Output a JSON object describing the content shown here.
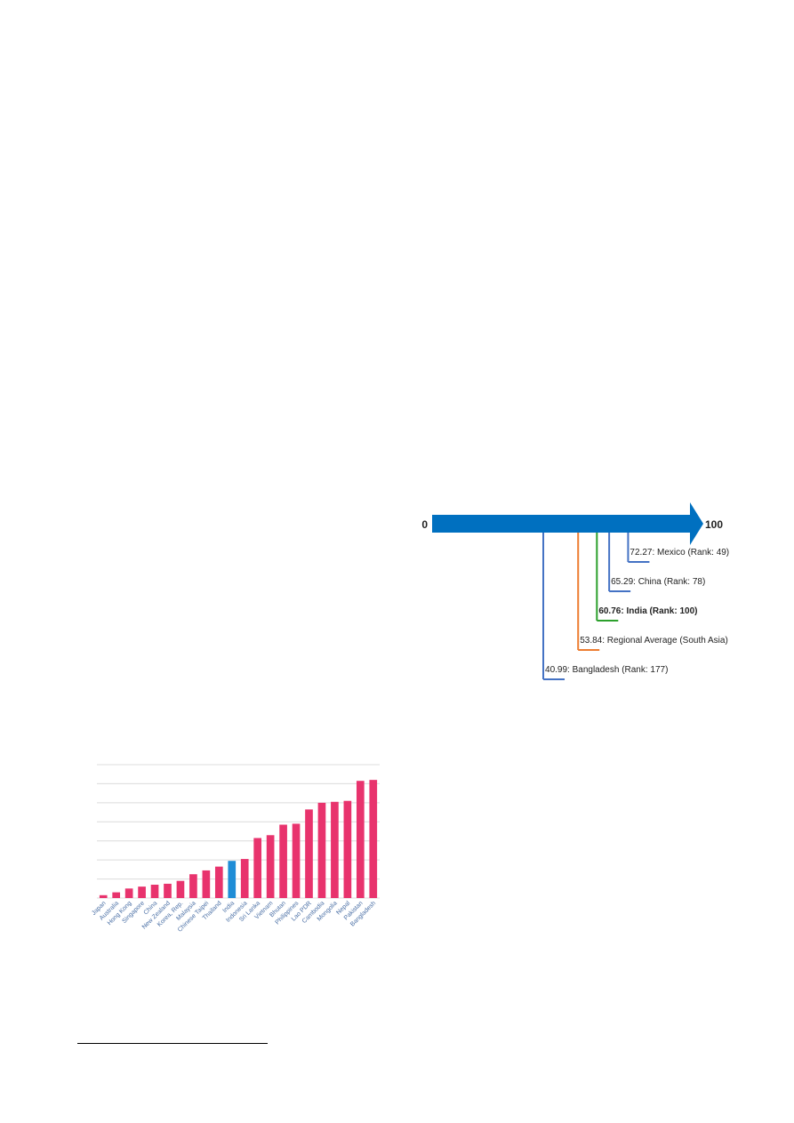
{
  "score_scale": {
    "min_label": "0",
    "max_label": "100",
    "arrow_color": "#0070c0",
    "markers": [
      {
        "value": 72.27,
        "label": "72.27: Mexico (Rank: 49)",
        "color": "#4472c4",
        "bold": false
      },
      {
        "value": 65.29,
        "label": "65.29: China (Rank: 78)",
        "color": "#4472c4",
        "bold": false
      },
      {
        "value": 60.76,
        "label": "60.76: India (Rank: 100)",
        "color": "#2ca02c",
        "bold": true
      },
      {
        "value": 53.84,
        "label": "53.84: Regional Average (South Asia)",
        "color": "#ed7d31",
        "bold": false
      },
      {
        "value": 40.99,
        "label": "40.99: Bangladesh (Rank: 177)",
        "color": "#4472c4",
        "bold": false
      }
    ]
  },
  "chart_data": {
    "type": "bar",
    "title": "",
    "xlabel": "",
    "ylabel": "",
    "grid": true,
    "ylim": [
      0,
      7
    ],
    "bar_color": "#e8336d",
    "highlight_color": "#1f8dd6",
    "highlight_category": "India",
    "categories": [
      "Japan",
      "Australia",
      "Hong Kong",
      "Singapore",
      "China",
      "New Zealand",
      "Korea, Rep.",
      "Malaysia",
      "Chinese Taipei",
      "Thailand",
      "India",
      "Indonesia",
      "Sri Lanka",
      "Vietnam",
      "Bhutan",
      "Philippines",
      "Lao PDR",
      "Cambodia",
      "Mongolia",
      "Nepal",
      "Pakistan",
      "Bangladesh"
    ],
    "values": [
      0.15,
      0.3,
      0.5,
      0.6,
      0.7,
      0.75,
      0.9,
      1.25,
      1.45,
      1.65,
      1.95,
      2.05,
      3.15,
      3.3,
      3.85,
      3.9,
      4.65,
      5.0,
      5.05,
      5.1,
      6.15,
      6.2
    ]
  }
}
